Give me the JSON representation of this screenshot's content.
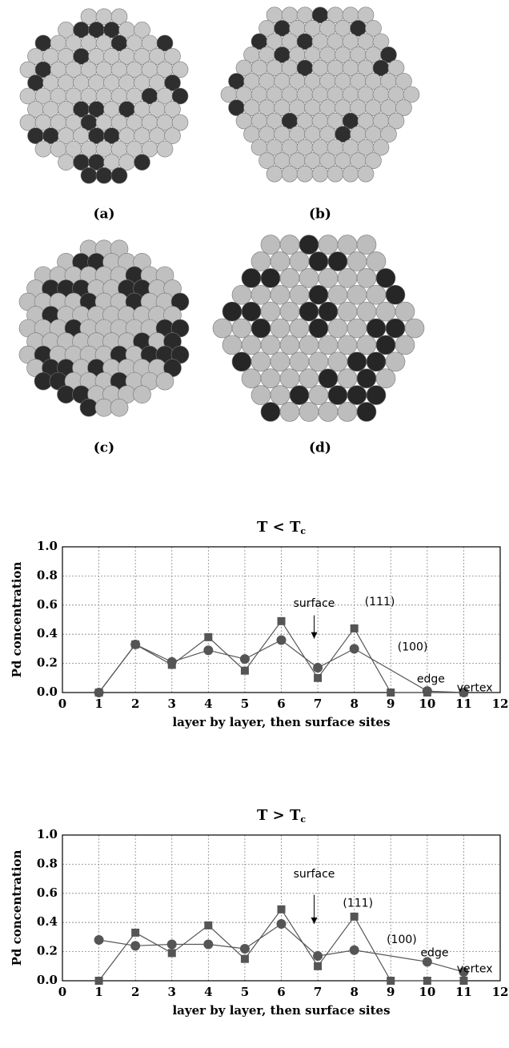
{
  "figure": {
    "panel_labels": [
      "(a)",
      "(b)",
      "(c)",
      "(d)"
    ]
  },
  "chart_data": [
    {
      "type": "line",
      "title": "T < T",
      "title_sub": "c",
      "ylabel": "Pd concentration",
      "xlabel": "layer by layer, then surface sites",
      "xlim": [
        0,
        12
      ],
      "xticks": [
        0,
        1,
        2,
        3,
        4,
        5,
        6,
        7,
        8,
        9,
        10,
        11,
        12
      ],
      "ylim": [
        0,
        1
      ],
      "yticks": [
        {
          "value": 0,
          "label": "0.0"
        },
        0.2,
        0.4,
        0.6,
        0.8,
        {
          "value": 1,
          "label": "1.0"
        }
      ],
      "grid": true,
      "annotations": [
        "surface",
        "(111)",
        "(100)",
        "edge",
        "vertex"
      ],
      "series": [
        {
          "marker": "square",
          "color": "#555555",
          "x": [
            1,
            2,
            3,
            4,
            5,
            6,
            7,
            8,
            9,
            10,
            11
          ],
          "values": [
            0,
            0.33,
            0.19,
            0.38,
            0.15,
            0.49,
            0.1,
            0.44,
            0,
            0,
            0
          ]
        },
        {
          "marker": "circle",
          "color": "#555555",
          "x": [
            1,
            2,
            3,
            4,
            5,
            6,
            7,
            8,
            10,
            11
          ],
          "values": [
            0,
            0.33,
            0.21,
            0.29,
            0.23,
            0.36,
            0.17,
            0.3,
            0.01,
            0
          ]
        }
      ]
    },
    {
      "type": "line",
      "title": "T > T",
      "title_sub": "c",
      "ylabel": "Pd concentration",
      "xlabel": "layer by layer, then surface sites",
      "xlim": [
        0,
        12
      ],
      "xticks": [
        0,
        1,
        2,
        3,
        4,
        5,
        6,
        7,
        8,
        9,
        10,
        11,
        12
      ],
      "ylim": [
        0,
        1
      ],
      "yticks": [
        {
          "value": 0,
          "label": "0.0"
        },
        0.2,
        0.4,
        0.6,
        0.8,
        {
          "value": 1,
          "label": "1.0"
        }
      ],
      "grid": true,
      "annotations": [
        "surface",
        "(111)",
        "(100)",
        "edge",
        "vertex"
      ],
      "series": [
        {
          "marker": "square",
          "color": "#555555",
          "x": [
            1,
            2,
            3,
            4,
            5,
            6,
            7,
            8,
            9,
            10,
            11
          ],
          "values": [
            0,
            0.33,
            0.19,
            0.38,
            0.15,
            0.49,
            0.1,
            0.44,
            0,
            0,
            0
          ]
        },
        {
          "marker": "circle",
          "color": "#555555",
          "x": [
            1,
            2,
            3,
            4,
            5,
            6,
            7,
            8,
            10,
            11
          ],
          "values": [
            0.28,
            0.24,
            0.25,
            0.25,
            0.22,
            0.39,
            0.17,
            0.21,
            0.13,
            0.06
          ]
        }
      ]
    }
  ]
}
